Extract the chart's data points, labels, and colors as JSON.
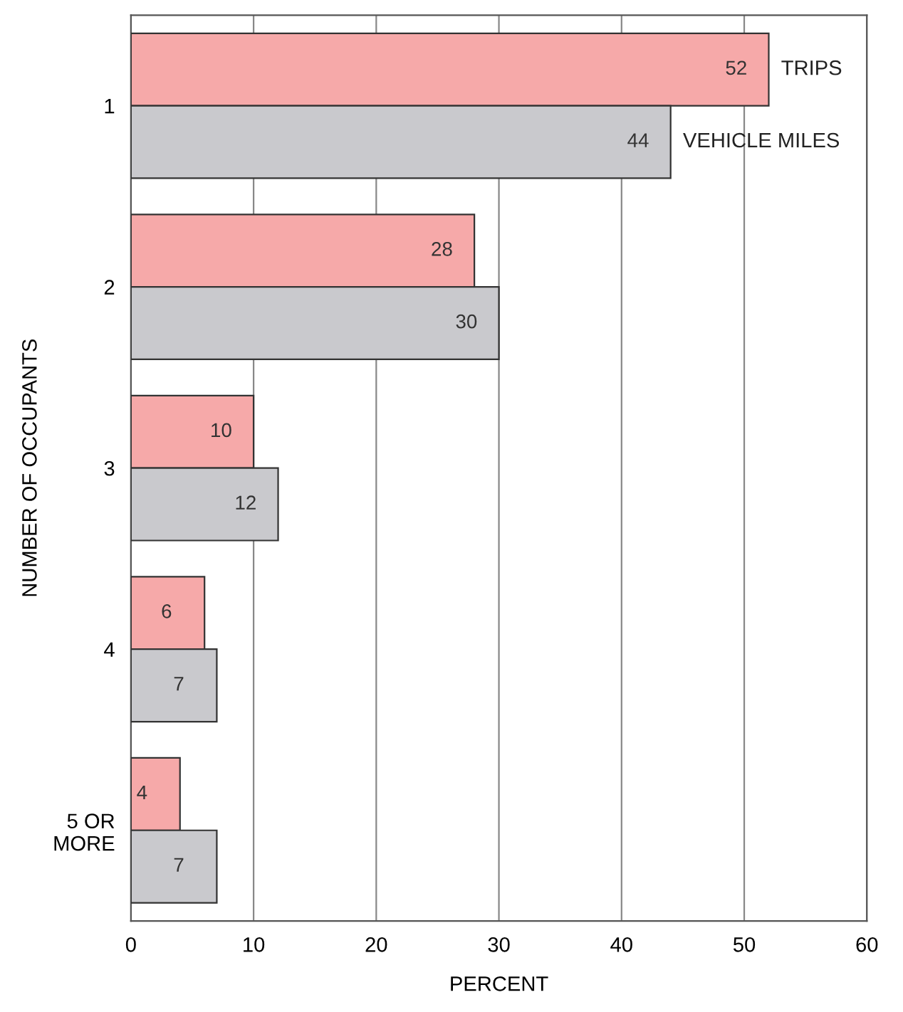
{
  "chart_data": {
    "type": "bar",
    "orientation": "horizontal",
    "ylabel": "NUMBER OF OCCUPANTS",
    "xlabel": "PERCENT",
    "categories": [
      "1",
      "2",
      "3",
      "4",
      "5 OR\nMORE"
    ],
    "series": [
      {
        "name": "TRIPS",
        "color": "#f6a9a9",
        "values": [
          52,
          28,
          10,
          6,
          4
        ]
      },
      {
        "name": "VEHICLE MILES",
        "color": "#c9c9cd",
        "values": [
          44,
          30,
          12,
          7,
          7
        ]
      }
    ],
    "xlim": [
      0,
      60
    ],
    "xticks": [
      0,
      10,
      20,
      30,
      40,
      50,
      60
    ],
    "grid": "x",
    "data_labels": true,
    "legend": false
  }
}
